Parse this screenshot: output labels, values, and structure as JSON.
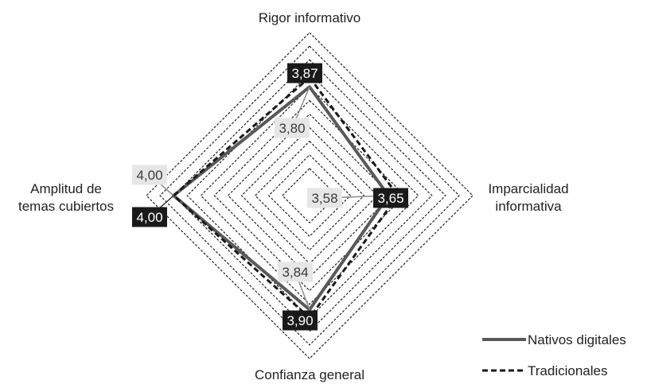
{
  "chart_data": {
    "type": "radar",
    "axes": [
      "Rigor informativo",
      "Imparcialidad informativa",
      "Confianza general",
      "Amplitud de temas cubiertos"
    ],
    "axis_label_lines": [
      [
        "Rigor informativo"
      ],
      [
        "Imparcialidad",
        "informativa"
      ],
      [
        "Confianza general"
      ],
      [
        "Amplitud de",
        "temas cubiertos"
      ]
    ],
    "range": [
      3.0,
      4.2
    ],
    "grid_levels": [
      3.2,
      3.3,
      3.4,
      3.5,
      3.6,
      3.7,
      3.8,
      3.9,
      4.0,
      4.1,
      4.2
    ],
    "grid_style": "dashed",
    "legend_position": "bottom-right",
    "series": [
      {
        "name": "Nativos digitales",
        "values": [
          3.8,
          3.58,
          3.84,
          4.0
        ],
        "labels": [
          "3,80",
          "3,58",
          "3,84",
          "4,00"
        ],
        "line_style": "solid",
        "color": "#595959",
        "label_bg": "#e6e6e6",
        "label_color": "#3a3a3a"
      },
      {
        "name": "Tradicionales",
        "values": [
          3.87,
          3.65,
          3.9,
          4.0
        ],
        "labels": [
          "3,87",
          "3,65",
          "3,90",
          "4,00"
        ],
        "line_style": "dashed",
        "color": "#1a1a1a",
        "label_bg": "#1a1a1a",
        "label_color": "#ffffff"
      }
    ]
  }
}
